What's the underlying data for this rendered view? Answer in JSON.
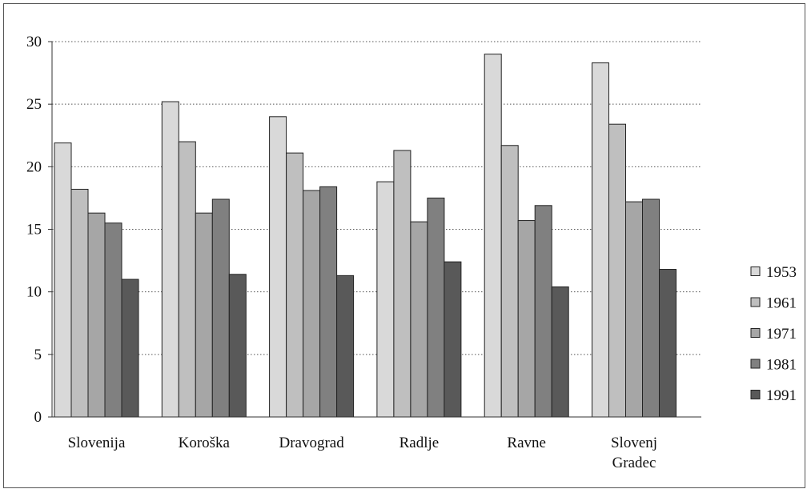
{
  "chart_data": {
    "type": "bar",
    "title": "",
    "xlabel": "",
    "ylabel": "",
    "ylim": [
      0,
      30
    ],
    "yticks": [
      0,
      5,
      10,
      15,
      20,
      25,
      30
    ],
    "grid": "horizontal-dotted",
    "legend_position": "right",
    "categories": [
      [
        "Slovenija"
      ],
      [
        "Koroška"
      ],
      [
        "Dravograd"
      ],
      [
        "Radlje"
      ],
      [
        "Ravne"
      ],
      [
        "Slovenj",
        "Gradec"
      ]
    ],
    "series": [
      {
        "name": "1953",
        "color": "#d9d9d9",
        "values": [
          21.9,
          25.2,
          24.0,
          18.8,
          29.0,
          28.3
        ]
      },
      {
        "name": "1961",
        "color": "#bfbfbf",
        "values": [
          18.2,
          22.0,
          21.1,
          21.3,
          21.7,
          23.4
        ]
      },
      {
        "name": "1971",
        "color": "#a6a6a6",
        "values": [
          16.3,
          16.3,
          18.1,
          15.6,
          15.7,
          17.2
        ]
      },
      {
        "name": "1981",
        "color": "#808080",
        "values": [
          15.5,
          17.4,
          18.4,
          17.5,
          16.9,
          17.4
        ]
      },
      {
        "name": "1991",
        "color": "#595959",
        "values": [
          11.0,
          11.4,
          11.3,
          12.4,
          10.4,
          11.8
        ]
      }
    ]
  }
}
